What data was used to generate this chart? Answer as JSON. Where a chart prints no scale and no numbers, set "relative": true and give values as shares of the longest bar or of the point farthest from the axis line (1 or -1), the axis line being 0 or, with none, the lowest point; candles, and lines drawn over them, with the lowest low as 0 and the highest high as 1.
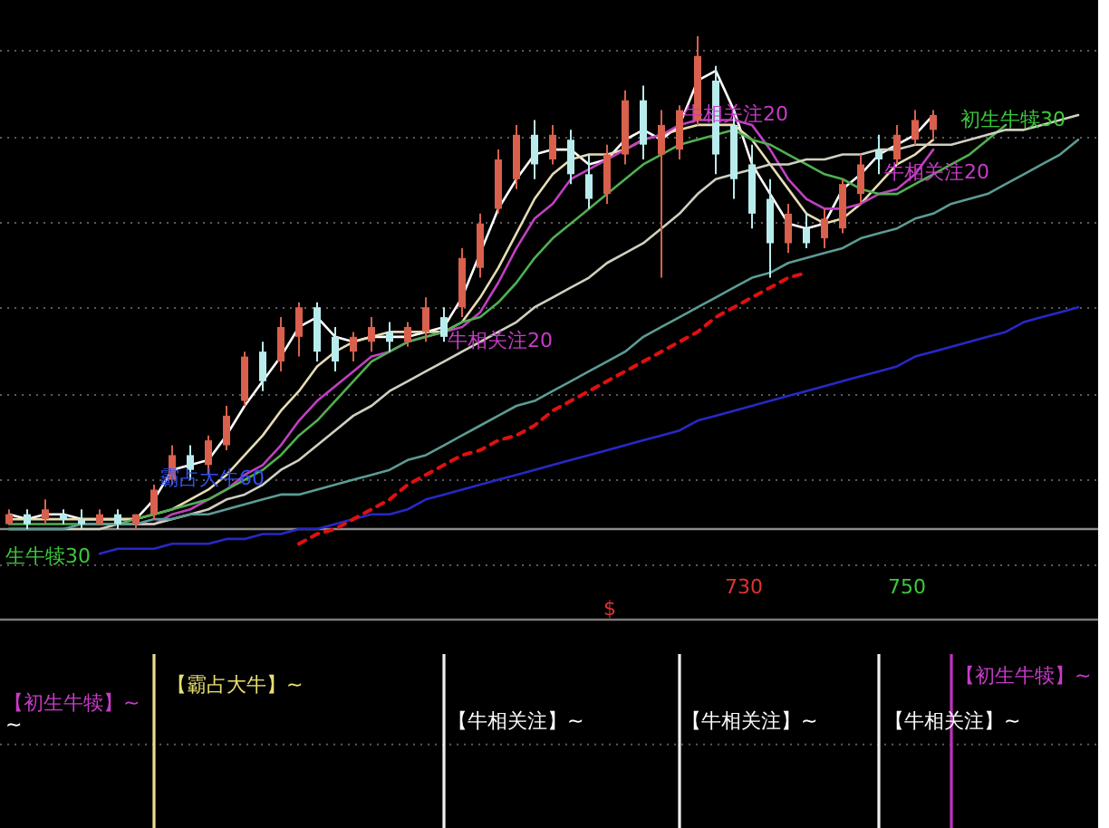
{
  "chart_data": [
    {
      "type": "candlestick",
      "relative": true,
      "grid": true,
      "categories": [
        null,
        null,
        null,
        null,
        null,
        null,
        null,
        null,
        null,
        null,
        null,
        null,
        null,
        null,
        null,
        null,
        null,
        null,
        null,
        null,
        null,
        null,
        null,
        null,
        null,
        null,
        null,
        null,
        null,
        null,
        null,
        null,
        null,
        null,
        null,
        null,
        null,
        null,
        null,
        null,
        null,
        null,
        null,
        null,
        null,
        null,
        null,
        null,
        null,
        null,
        null,
        null,
        null,
        null,
        null,
        null,
        null,
        null,
        null,
        null
      ],
      "ohlc": [
        [
          0.01,
          0.04,
          0.01,
          0.03
        ],
        [
          0.03,
          0.04,
          0,
          0.01
        ],
        [
          0.02,
          0.06,
          0.01,
          0.04
        ],
        [
          0.03,
          0.04,
          0.01,
          0.02
        ],
        [
          0.02,
          0.04,
          0,
          0.01
        ],
        [
          0.01,
          0.04,
          0.01,
          0.03
        ],
        [
          0.03,
          0.04,
          0,
          0.01
        ],
        [
          0.01,
          0.03,
          0,
          0.03
        ],
        [
          0.03,
          0.09,
          0.02,
          0.08
        ],
        [
          0.1,
          0.17,
          0.09,
          0.15
        ],
        [
          0.15,
          0.17,
          0.1,
          0.12
        ],
        [
          0.13,
          0.19,
          0.11,
          0.18
        ],
        [
          0.17,
          0.25,
          0.16,
          0.23
        ],
        [
          0.26,
          0.36,
          0.25,
          0.35
        ],
        [
          0.36,
          0.38,
          0.28,
          0.3
        ],
        [
          0.34,
          0.43,
          0.32,
          0.41
        ],
        [
          0.39,
          0.46,
          0.35,
          0.45
        ],
        [
          0.45,
          0.46,
          0.34,
          0.36
        ],
        [
          0.39,
          0.41,
          0.32,
          0.34
        ],
        [
          0.36,
          0.4,
          0.34,
          0.39
        ],
        [
          0.38,
          0.43,
          0.36,
          0.41
        ],
        [
          0.4,
          0.42,
          0.36,
          0.38
        ],
        [
          0.38,
          0.42,
          0.37,
          0.41
        ],
        [
          0.4,
          0.47,
          0.38,
          0.45
        ],
        [
          0.43,
          0.45,
          0.38,
          0.39
        ],
        [
          0.45,
          0.57,
          0.43,
          0.55
        ],
        [
          0.53,
          0.64,
          0.51,
          0.62
        ],
        [
          0.65,
          0.77,
          0.64,
          0.75
        ],
        [
          0.71,
          0.82,
          0.69,
          0.8
        ],
        [
          0.8,
          0.83,
          0.71,
          0.74
        ],
        [
          0.75,
          0.82,
          0.74,
          0.8
        ],
        [
          0.79,
          0.81,
          0.7,
          0.72
        ],
        [
          0.72,
          0.76,
          0.65,
          0.67
        ],
        [
          0.68,
          0.78,
          0.66,
          0.76
        ],
        [
          0.76,
          0.89,
          0.74,
          0.87
        ],
        [
          0.87,
          0.9,
          0.75,
          0.78
        ],
        [
          0.76,
          0.85,
          0.51,
          0.82
        ],
        [
          0.77,
          0.86,
          0.75,
          0.85
        ],
        [
          0.83,
          1,
          0.82,
          0.96
        ],
        [
          0.91,
          0.94,
          0.72,
          0.76
        ],
        [
          0.82,
          0.85,
          0.67,
          0.71
        ],
        [
          0.74,
          0.78,
          0.61,
          0.64
        ],
        [
          0.67,
          0.71,
          0.51,
          0.58
        ],
        [
          0.58,
          0.66,
          0.56,
          0.64
        ],
        [
          0.61,
          0.64,
          0.57,
          0.58
        ],
        [
          0.59,
          0.65,
          0.57,
          0.63
        ],
        [
          0.61,
          0.71,
          0.6,
          0.7
        ],
        [
          0.68,
          0.76,
          0.66,
          0.74
        ],
        [
          0.77,
          0.8,
          0.72,
          0.75
        ],
        [
          0.75,
          0.82,
          0.74,
          0.8
        ],
        [
          0.79,
          0.85,
          0.78,
          0.83
        ],
        [
          0.81,
          0.85,
          0.79,
          0.84
        ],
        null,
        null,
        null,
        null,
        null,
        null,
        null,
        null
      ],
      "colors": [
        "#d8604c",
        "#b8ecec",
        "#d8604c",
        "#b8ecec",
        "#b8ecec",
        "#d8604c",
        "#b8ecec",
        "#d8604c",
        "#d8604c",
        "#d8604c",
        "#b8ecec",
        "#d8604c",
        "#d8604c",
        "#d8604c",
        "#b8ecec",
        "#d8604c",
        "#d8604c",
        "#b8ecec",
        "#b8ecec",
        "#d8604c",
        "#d8604c",
        "#b8ecec",
        "#d8604c",
        "#d8604c",
        "#b8ecec",
        "#d8604c",
        "#d8604c",
        "#d8604c",
        "#d8604c",
        "#b8ecec",
        "#d8604c",
        "#b8ecec",
        "#b8ecec",
        "#d8604c",
        "#d8604c",
        "#b8ecec",
        "#d8604c",
        "#d8604c",
        "#d8604c",
        "#b8ecec",
        "#b8ecec",
        "#b8ecec",
        "#b8ecec",
        "#d8604c",
        "#b8ecec",
        "#d8604c",
        "#d8604c",
        "#d8604c",
        "#b8ecec",
        "#d8604c",
        "#d8604c",
        "#d8604c",
        null,
        null,
        null,
        null,
        null,
        null,
        null,
        null
      ],
      "series": [
        {
          "type": "line",
          "color": "#ffffff",
          "values": [
            0.03,
            0.02,
            0.03,
            0.03,
            0.02,
            0.02,
            0.02,
            0.02,
            0.06,
            0.12,
            0.13,
            0.14,
            0.19,
            0.25,
            0.3,
            0.35,
            0.41,
            0.43,
            0.39,
            0.38,
            0.39,
            0.39,
            0.39,
            0.4,
            0.41,
            0.47,
            0.56,
            0.65,
            0.71,
            0.76,
            0.77,
            0.77,
            0.74,
            0.75,
            0.79,
            0.81,
            0.79,
            0.82,
            0.91,
            0.93,
            0.85,
            0.74,
            0.68,
            0.62,
            0.61,
            0.62,
            0.69,
            0.72,
            0.76,
            0.78,
            0.8,
            0.84,
            null,
            null,
            null,
            null,
            null,
            null,
            null,
            null
          ]
        },
        {
          "type": "line",
          "color": "#e6dcb4",
          "values": [
            0.02,
            0.02,
            0.02,
            0.02,
            0.02,
            0.02,
            0.02,
            0.02,
            0.03,
            0.04,
            0.06,
            0.08,
            0.11,
            0.15,
            0.19,
            0.24,
            0.28,
            0.33,
            0.36,
            0.38,
            0.39,
            0.4,
            0.4,
            0.4,
            0.4,
            0.42,
            0.47,
            0.53,
            0.6,
            0.67,
            0.72,
            0.75,
            0.76,
            0.76,
            0.77,
            0.79,
            0.8,
            0.81,
            0.82,
            0.82,
            0.82,
            0.79,
            0.74,
            0.69,
            0.64,
            0.62,
            0.63,
            0.66,
            0.7,
            0.74,
            0.76,
            0.79,
            null,
            null,
            null,
            null,
            null,
            null,
            null,
            null
          ]
        },
        {
          "type": "line",
          "color": "#c040c0",
          "values": [
            null,
            null,
            null,
            null,
            null,
            null,
            null,
            0.01,
            0.01,
            0.03,
            0.04,
            0.06,
            0.08,
            0.11,
            0.13,
            0.17,
            0.22,
            0.26,
            0.29,
            0.32,
            0.35,
            0.36,
            0.38,
            0.39,
            0.4,
            0.41,
            0.44,
            0.5,
            0.57,
            0.63,
            0.66,
            0.71,
            0.73,
            0.75,
            0.77,
            0.79,
            0.8,
            0.82,
            0.83,
            0.83,
            0.83,
            0.82,
            0.77,
            0.71,
            0.67,
            0.65,
            0.65,
            0.66,
            0.68,
            0.69,
            0.72,
            0.77,
            null,
            null,
            null,
            null,
            null,
            null,
            null,
            null
          ]
        },
        {
          "type": "line",
          "color": "#50b050",
          "values": [
            0.01,
            0.01,
            0.01,
            0.01,
            0.01,
            0.01,
            0.01,
            0.02,
            0.03,
            0.04,
            0.05,
            0.06,
            0.08,
            0.1,
            0.12,
            0.15,
            0.19,
            0.22,
            0.26,
            0.3,
            0.34,
            0.36,
            0.38,
            0.39,
            0.4,
            0.42,
            0.43,
            0.46,
            0.5,
            0.55,
            0.59,
            0.62,
            0.65,
            0.68,
            0.71,
            0.74,
            0.76,
            0.78,
            0.79,
            0.8,
            0.81,
            0.79,
            0.78,
            0.76,
            0.74,
            0.72,
            0.71,
            0.69,
            0.68,
            0.68,
            0.7,
            0.72,
            0.74,
            0.76,
            0.79,
            0.82,
            null,
            null,
            null,
            null
          ]
        },
        {
          "type": "line",
          "color": "#d0d0c0",
          "values": [
            0,
            0,
            0,
            0,
            0,
            0,
            0.01,
            0.01,
            0.01,
            0.02,
            0.03,
            0.04,
            0.06,
            0.07,
            0.09,
            0.12,
            0.14,
            0.17,
            0.2,
            0.23,
            0.25,
            0.28,
            0.3,
            0.32,
            0.34,
            0.36,
            0.38,
            0.4,
            0.42,
            0.45,
            0.47,
            0.49,
            0.51,
            0.54,
            0.56,
            0.58,
            0.61,
            0.64,
            0.68,
            0.71,
            0.72,
            0.73,
            0.74,
            0.74,
            0.75,
            0.75,
            0.76,
            0.76,
            0.77,
            0.77,
            0.78,
            0.78,
            0.78,
            0.79,
            0.8,
            0.81,
            0.81,
            0.82,
            0.83,
            0.84
          ]
        },
        {
          "type": "line",
          "color": "#5c9c94",
          "values": [
            0,
            0,
            0,
            0,
            0.01,
            0.01,
            0.01,
            0.01,
            0.02,
            0.02,
            0.03,
            0.03,
            0.04,
            0.05,
            0.06,
            0.07,
            0.07,
            0.08,
            0.09,
            0.1,
            0.11,
            0.12,
            0.14,
            0.15,
            0.17,
            0.19,
            0.21,
            0.23,
            0.25,
            0.26,
            0.28,
            0.3,
            0.32,
            0.34,
            0.36,
            0.39,
            0.41,
            0.43,
            0.45,
            0.47,
            0.49,
            0.51,
            0.52,
            0.54,
            0.55,
            0.56,
            0.57,
            0.59,
            0.6,
            0.61,
            0.63,
            0.64,
            0.66,
            0.67,
            0.68,
            0.7,
            0.72,
            0.74,
            0.76,
            0.79
          ]
        },
        {
          "type": "line",
          "color": "#2828c8",
          "values": [
            null,
            null,
            null,
            null,
            null,
            -0.05,
            -0.04,
            -0.04,
            -0.04,
            -0.03,
            -0.03,
            -0.03,
            -0.02,
            -0.02,
            -0.01,
            -0.01,
            0,
            0,
            0.01,
            0.02,
            0.03,
            0.03,
            0.04,
            0.06,
            0.07,
            0.08,
            0.09,
            0.1,
            0.11,
            0.12,
            0.13,
            0.14,
            0.15,
            0.16,
            0.17,
            0.18,
            0.19,
            0.2,
            0.22,
            0.23,
            0.24,
            0.25,
            0.26,
            0.27,
            0.28,
            0.29,
            0.3,
            0.31,
            0.32,
            0.33,
            0.35,
            0.36,
            0.37,
            0.38,
            0.39,
            0.4,
            0.42,
            0.43,
            0.44,
            0.45
          ]
        },
        {
          "type": "line",
          "color": "#e01010",
          "line_style": "dashed",
          "values": [
            null,
            null,
            null,
            null,
            null,
            null,
            null,
            null,
            null,
            null,
            null,
            null,
            null,
            null,
            null,
            null,
            -0.03,
            -0.01,
            0,
            0.02,
            0.04,
            0.06,
            0.09,
            0.11,
            0.13,
            0.15,
            0.16,
            0.18,
            0.19,
            0.21,
            0.24,
            0.26,
            0.28,
            0.3,
            0.32,
            0.34,
            0.36,
            0.38,
            0.4,
            0.43,
            0.45,
            0.47,
            0.49,
            0.51,
            0.52,
            null,
            null,
            null,
            null,
            null,
            null,
            null,
            null,
            null,
            null,
            null,
            null,
            null,
            null,
            null
          ]
        }
      ],
      "ref_lines": [
        {
          "axis": "y",
          "value": 0,
          "color": "#8a8a8a"
        }
      ],
      "annotations": [
        "牛相关注20",
        "牛相关注20",
        "牛相关注20",
        "初生牛犊30",
        "生牛犊30",
        "霸占大牛60",
        "730",
        "750",
        "$"
      ]
    },
    {
      "type": "bar",
      "relative": true,
      "categories": [
        null,
        null,
        null,
        null,
        null,
        null,
        null,
        null,
        null,
        null,
        null,
        null,
        null,
        null,
        null,
        null,
        null,
        null,
        null,
        null,
        null,
        null,
        null,
        null,
        null,
        null,
        null,
        null,
        null,
        null,
        null,
        null,
        null,
        null,
        null,
        null,
        null,
        null,
        null,
        null,
        null,
        null,
        null,
        null,
        null,
        null,
        null,
        null,
        null,
        null,
        null,
        null,
        null,
        null,
        null,
        null,
        null,
        null,
        null,
        null
      ],
      "values": [
        null,
        null,
        null,
        null,
        null,
        null,
        null,
        null,
        1,
        null,
        null,
        null,
        null,
        null,
        null,
        null,
        null,
        null,
        null,
        null,
        null,
        null,
        null,
        null,
        1,
        null,
        null,
        null,
        null,
        null,
        null,
        null,
        null,
        null,
        null,
        null,
        null,
        1,
        null,
        null,
        null,
        null,
        null,
        null,
        null,
        null,
        null,
        null,
        1,
        null,
        null,
        null,
        1,
        null,
        null,
        null,
        null,
        null,
        null,
        null
      ],
      "colors": [
        null,
        null,
        null,
        null,
        null,
        null,
        null,
        null,
        "#e6e08c",
        null,
        null,
        null,
        null,
        null,
        null,
        null,
        null,
        null,
        null,
        null,
        null,
        null,
        null,
        null,
        "#f0f0f0",
        null,
        null,
        null,
        null,
        null,
        null,
        null,
        null,
        null,
        null,
        null,
        null,
        "#f0f0f0",
        null,
        null,
        null,
        null,
        null,
        null,
        null,
        null,
        null,
        null,
        "#f0f0f0",
        null,
        null,
        null,
        "#c030c0",
        null,
        null,
        null,
        null,
        null,
        null,
        null
      ],
      "ref_lines": [
        {
          "axis": "y",
          "value": 0.48,
          "color": "#5a5a5a",
          "line_style": "dotted"
        }
      ],
      "annotations": [
        "【初生牛犊】~",
        "~",
        "【霸占大牛】~",
        "【牛相关注】~",
        "【牛相关注】~",
        "【牛相关注】~",
        "【初生牛犊】~"
      ]
    }
  ]
}
